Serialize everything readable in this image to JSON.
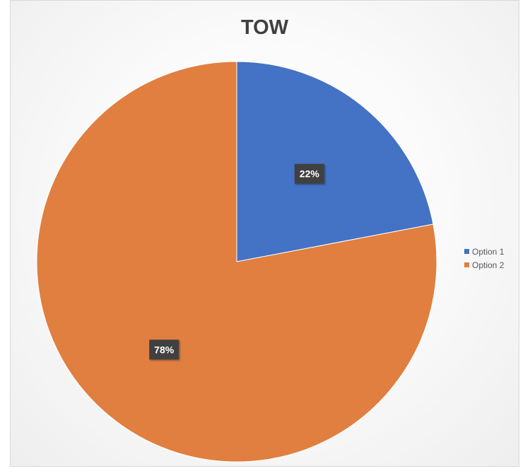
{
  "chart_data": {
    "type": "pie",
    "title": "TOW",
    "categories": [
      "Option 1",
      "Option 2"
    ],
    "values": [
      22,
      78
    ],
    "data_labels": [
      "22%",
      "78%"
    ],
    "colors": [
      "#4472c4",
      "#e07f40"
    ],
    "legend_position": "right"
  }
}
